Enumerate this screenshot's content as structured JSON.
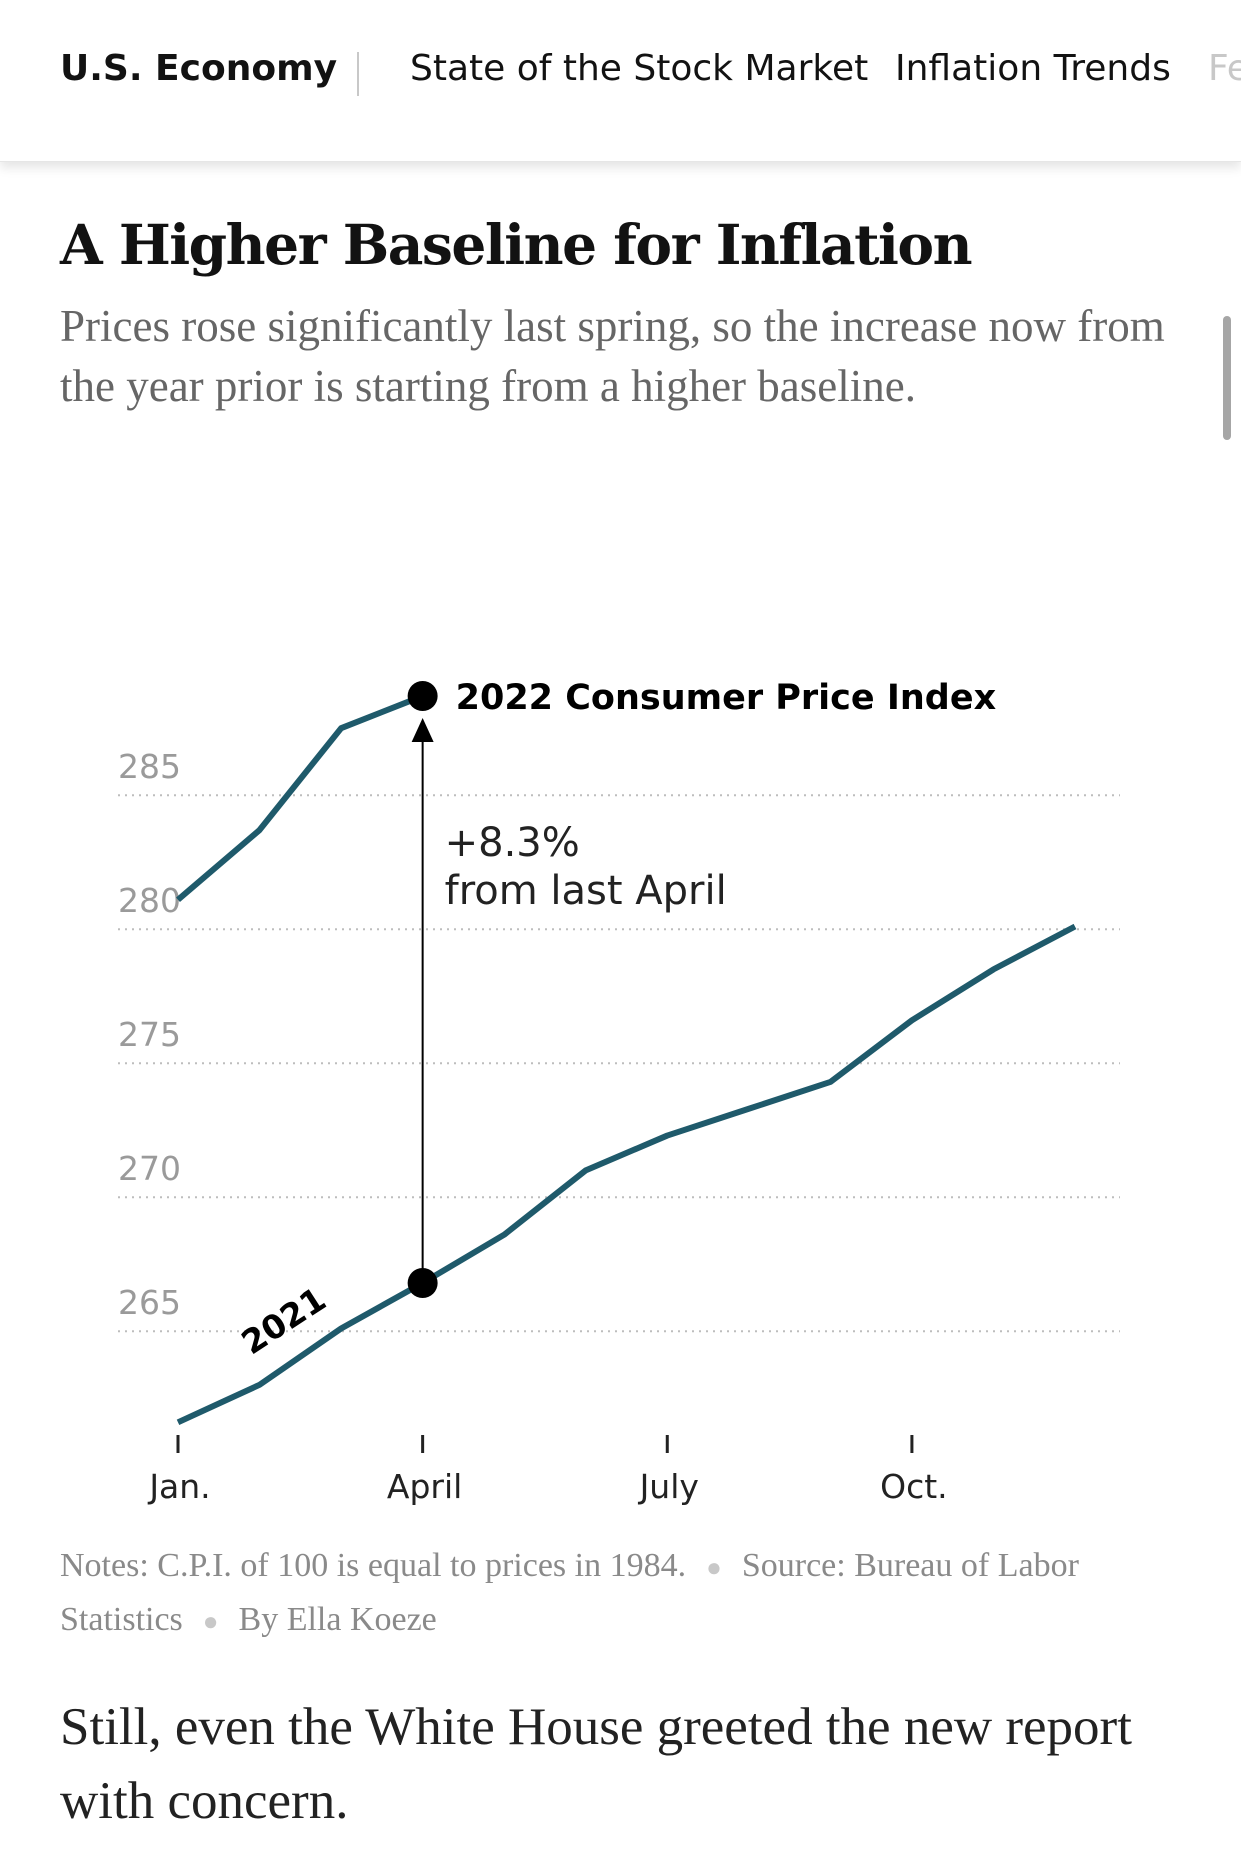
{
  "nav": {
    "items": [
      "U.S. Economy",
      "State of the Stock Market",
      "Inflation Trends",
      "Fe"
    ]
  },
  "headline": "A Higher Baseline for Inflation",
  "subhead": "Prices rose significantly last spring, so the increase now from the year prior is starting from a higher baseline.",
  "notes": {
    "note": "Notes: C.P.I. of 100 is equal to prices in 1984.",
    "source": "Source: Bureau of Labor Statistics",
    "byline": "By Ella Koeze"
  },
  "body_text": "Still, even the White House greeted the new report with concern.",
  "colors": {
    "line": "#1f5a6b",
    "grid": "#bdbdbd",
    "tick_label": "#9a9a9a",
    "marker": "#000000"
  },
  "chart_data": {
    "type": "line",
    "y_ticks": [
      265,
      270,
      275,
      280,
      285
    ],
    "ylim": [
      261.5,
      289
    ],
    "x_ticks": [
      {
        "label": "Jan.",
        "month": 1
      },
      {
        "label": "April",
        "month": 4
      },
      {
        "label": "July",
        "month": 7
      },
      {
        "label": "Oct.",
        "month": 10
      }
    ],
    "xlim": [
      1,
      12
    ],
    "series": [
      {
        "name": "2022 Consumer Price Index",
        "months": [
          1,
          2,
          3,
          4
        ],
        "values": [
          281.1,
          283.7,
          287.5,
          288.7
        ]
      },
      {
        "name": "2021",
        "months": [
          1,
          2,
          3,
          4,
          5,
          6,
          7,
          8,
          9,
          10,
          11,
          12
        ],
        "values": [
          261.6,
          263.0,
          265.1,
          266.8,
          268.6,
          271.0,
          272.3,
          273.3,
          274.3,
          276.6,
          278.5,
          280.1
        ]
      }
    ],
    "annotation": {
      "from_month": 4,
      "change": "+8.3%",
      "label": "from last April"
    }
  }
}
